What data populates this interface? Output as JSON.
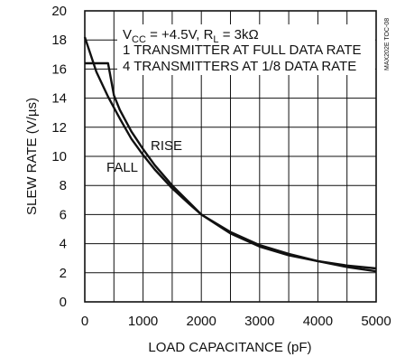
{
  "chart_data": {
    "type": "line",
    "xlabel": "LOAD CAPACITANCE (pF)",
    "ylabel": "SLEW RATE (V/µs)",
    "xlim": [
      0,
      5000
    ],
    "ylim": [
      0,
      20
    ],
    "xticks": [
      0,
      1000,
      2000,
      3000,
      4000,
      5000
    ],
    "yticks": [
      0,
      2,
      4,
      6,
      8,
      10,
      12,
      14,
      16,
      18,
      20
    ],
    "grid": true,
    "annotations": {
      "conditions_line1": "V",
      "conditions_cc_sub": "CC",
      "conditions_mid": " = +4.5V, R",
      "conditions_l_sub": "L",
      "conditions_end": " = 3kΩ",
      "line2": "1 TRANSMITTER AT FULL DATA RATE",
      "line3": "4 TRANSMITTERS AT 1/8 DATA RATE",
      "figure_id": "MAX202E TOC-08"
    },
    "series": [
      {
        "name": "RISE",
        "x": [
          0,
          400,
          500,
          600,
          800,
          1000,
          1200,
          1500,
          1800,
          2000,
          2500,
          3000,
          3500,
          4000,
          4500,
          5000
        ],
        "y": [
          16.4,
          16.4,
          14.2,
          13.2,
          11.7,
          10.5,
          9.4,
          8.0,
          6.8,
          6.0,
          4.7,
          3.8,
          3.2,
          2.8,
          2.5,
          2.3
        ]
      },
      {
        "name": "FALL",
        "x": [
          0,
          200,
          400,
          600,
          800,
          1000,
          1200,
          1500,
          1800,
          2000,
          2500,
          3000,
          3500,
          4000,
          4500,
          5000
        ],
        "y": [
          18.2,
          15.8,
          14.1,
          12.6,
          11.2,
          10.1,
          9.1,
          7.8,
          6.7,
          6.0,
          4.8,
          3.9,
          3.3,
          2.8,
          2.4,
          2.1
        ]
      }
    ]
  }
}
